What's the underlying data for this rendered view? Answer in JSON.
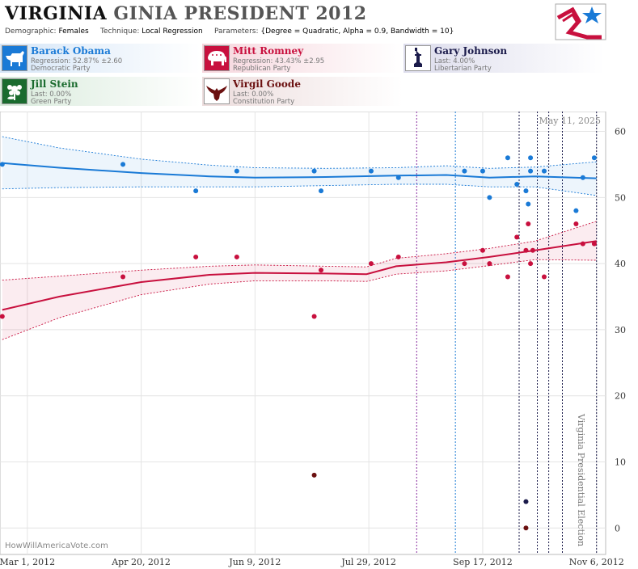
{
  "header": {
    "title_bold": "VIRGINIA",
    "title_rest": "GINIA PRESIDENT 2012",
    "demographic_label": "Demographic:",
    "demographic_value": "Females",
    "technique_label": "Technique:",
    "technique_value": "Local Regression",
    "parameters_label": "Parameters:",
    "parameters_value": "{Degree = Quadratic, Alpha = 0.9, Bandwidth = 10}",
    "logo_icon": "star-flag-logo-icon"
  },
  "candidates": [
    {
      "name": "Barack Obama",
      "line1": "Regression: 52.87% ±2.60",
      "line2": "Democratic Party",
      "color": "#1a7ad6",
      "icon": "donkey-icon"
    },
    {
      "name": "Mitt Romney",
      "line1": "Regression: 43.43% ±2.95",
      "line2": "Republican Party",
      "color": "#c8103e",
      "icon": "elephant-icon"
    },
    {
      "name": "Gary Johnson",
      "line1": "Last: 4.00%",
      "line2": "Libertarian Party",
      "color": "#1a1a4a",
      "icon": "statue-of-liberty-icon"
    },
    {
      "name": "Jill Stein",
      "line1": "Last: 0.00%",
      "line2": "Green Party",
      "color": "#1a6b2e",
      "icon": "flower-icon"
    },
    {
      "name": "Virgil Goode",
      "line1": "Last: 0.00%",
      "line2": "Constitution Party",
      "color": "#6b1010",
      "icon": "eagle-icon"
    }
  ],
  "chart_data": {
    "type": "scatter",
    "date_stamp": "May 11, 2025",
    "watermark": "HowWillAmericaVote.com",
    "event_label": "Virginia Presidential Election",
    "x_range": [
      "2012-02-18",
      "2012-11-10"
    ],
    "ylim": [
      -4,
      63
    ],
    "y_ticks": [
      0,
      10,
      20,
      30,
      40,
      50,
      60
    ],
    "x_ticks": [
      {
        "date": "2012-03-01",
        "label": "Mar 1, 2012"
      },
      {
        "date": "2012-04-20",
        "label": "Apr 20, 2012"
      },
      {
        "date": "2012-06-09",
        "label": "Jun 9, 2012"
      },
      {
        "date": "2012-07-29",
        "label": "Jul 29, 2012"
      },
      {
        "date": "2012-09-17",
        "label": "Sep 17, 2012"
      },
      {
        "date": "2012-11-06",
        "label": "Nov 6, 2012"
      }
    ],
    "vlines": [
      {
        "date": "2012-08-19",
        "color": "#8a2fa0"
      },
      {
        "date": "2012-09-05",
        "color": "#1a7ad6"
      },
      {
        "date": "2012-10-03",
        "color": "#1a1a4a"
      },
      {
        "date": "2012-10-11",
        "color": "#1a1a4a"
      },
      {
        "date": "2012-10-16",
        "color": "#1a1a4a"
      },
      {
        "date": "2012-10-22",
        "color": "#1a1a4a"
      },
      {
        "date": "2012-11-06",
        "color": "#1a1a4a"
      }
    ],
    "series": [
      {
        "name": "Barack Obama",
        "color": "#1a7ad6",
        "points": [
          [
            "2012-02-19",
            55
          ],
          [
            "2012-04-12",
            55
          ],
          [
            "2012-05-14",
            51
          ],
          [
            "2012-06-01",
            54
          ],
          [
            "2012-07-05",
            54
          ],
          [
            "2012-07-08",
            51
          ],
          [
            "2012-07-30",
            54
          ],
          [
            "2012-08-11",
            53
          ],
          [
            "2012-09-09",
            54
          ],
          [
            "2012-09-17",
            54
          ],
          [
            "2012-09-20",
            50
          ],
          [
            "2012-09-28",
            56
          ],
          [
            "2012-10-02",
            52
          ],
          [
            "2012-10-06",
            51
          ],
          [
            "2012-10-07",
            49
          ],
          [
            "2012-10-08",
            54
          ],
          [
            "2012-10-08",
            56
          ],
          [
            "2012-10-14",
            54
          ],
          [
            "2012-10-28",
            48
          ],
          [
            "2012-10-31",
            53
          ],
          [
            "2012-11-05",
            56
          ]
        ],
        "trend": [
          [
            "2012-02-19",
            55.2
          ],
          [
            "2012-03-15",
            54.5
          ],
          [
            "2012-04-20",
            53.7
          ],
          [
            "2012-05-20",
            53.2
          ],
          [
            "2012-06-09",
            53.0
          ],
          [
            "2012-07-10",
            53.1
          ],
          [
            "2012-08-10",
            53.3
          ],
          [
            "2012-09-01",
            53.4
          ],
          [
            "2012-09-20",
            53.0
          ],
          [
            "2012-10-10",
            53.2
          ],
          [
            "2012-11-06",
            52.9
          ]
        ],
        "upper": [
          [
            "2012-02-19",
            59.2
          ],
          [
            "2012-03-15",
            57.5
          ],
          [
            "2012-04-20",
            55.8
          ],
          [
            "2012-05-20",
            54.9
          ],
          [
            "2012-06-09",
            54.5
          ],
          [
            "2012-07-10",
            54.4
          ],
          [
            "2012-08-10",
            54.5
          ],
          [
            "2012-09-01",
            54.8
          ],
          [
            "2012-09-20",
            54.4
          ],
          [
            "2012-10-10",
            54.6
          ],
          [
            "2012-11-06",
            55.4
          ]
        ],
        "lower": [
          [
            "2012-02-19",
            51.3
          ],
          [
            "2012-03-15",
            51.5
          ],
          [
            "2012-04-20",
            51.6
          ],
          [
            "2012-05-20",
            51.6
          ],
          [
            "2012-06-09",
            51.6
          ],
          [
            "2012-07-10",
            51.8
          ],
          [
            "2012-08-10",
            52.0
          ],
          [
            "2012-09-01",
            52.0
          ],
          [
            "2012-09-20",
            51.6
          ],
          [
            "2012-10-10",
            51.6
          ],
          [
            "2012-11-06",
            50.3
          ]
        ]
      },
      {
        "name": "Mitt Romney",
        "color": "#c8103e",
        "points": [
          [
            "2012-02-19",
            32
          ],
          [
            "2012-04-12",
            38
          ],
          [
            "2012-05-14",
            41
          ],
          [
            "2012-06-01",
            41
          ],
          [
            "2012-07-05",
            32
          ],
          [
            "2012-07-08",
            39
          ],
          [
            "2012-07-30",
            40
          ],
          [
            "2012-08-11",
            41
          ],
          [
            "2012-09-09",
            40
          ],
          [
            "2012-09-17",
            42
          ],
          [
            "2012-09-20",
            40
          ],
          [
            "2012-09-28",
            38
          ],
          [
            "2012-10-02",
            44
          ],
          [
            "2012-10-06",
            42
          ],
          [
            "2012-10-07",
            46
          ],
          [
            "2012-10-08",
            40
          ],
          [
            "2012-10-09",
            42
          ],
          [
            "2012-10-14",
            38
          ],
          [
            "2012-10-28",
            46
          ],
          [
            "2012-10-31",
            43
          ],
          [
            "2012-11-05",
            43
          ]
        ],
        "trend": [
          [
            "2012-02-19",
            33.0
          ],
          [
            "2012-03-15",
            35.0
          ],
          [
            "2012-04-20",
            37.2
          ],
          [
            "2012-05-20",
            38.3
          ],
          [
            "2012-06-09",
            38.6
          ],
          [
            "2012-07-10",
            38.5
          ],
          [
            "2012-07-28",
            38.4
          ],
          [
            "2012-08-10",
            39.6
          ],
          [
            "2012-09-01",
            40.2
          ],
          [
            "2012-09-20",
            41.0
          ],
          [
            "2012-10-10",
            42.0
          ],
          [
            "2012-11-06",
            43.4
          ]
        ],
        "upper": [
          [
            "2012-02-19",
            37.5
          ],
          [
            "2012-03-15",
            38.1
          ],
          [
            "2012-04-20",
            39.0
          ],
          [
            "2012-05-20",
            39.6
          ],
          [
            "2012-06-09",
            39.8
          ],
          [
            "2012-07-10",
            39.6
          ],
          [
            "2012-07-28",
            39.5
          ],
          [
            "2012-08-10",
            40.8
          ],
          [
            "2012-09-01",
            41.5
          ],
          [
            "2012-09-20",
            42.3
          ],
          [
            "2012-10-10",
            43.4
          ],
          [
            "2012-11-06",
            46.4
          ]
        ],
        "lower": [
          [
            "2012-02-19",
            28.5
          ],
          [
            "2012-03-15",
            31.8
          ],
          [
            "2012-04-20",
            35.3
          ],
          [
            "2012-05-20",
            36.9
          ],
          [
            "2012-06-09",
            37.4
          ],
          [
            "2012-07-10",
            37.4
          ],
          [
            "2012-07-28",
            37.3
          ],
          [
            "2012-08-10",
            38.4
          ],
          [
            "2012-09-01",
            38.9
          ],
          [
            "2012-09-20",
            39.7
          ],
          [
            "2012-10-10",
            40.6
          ],
          [
            "2012-11-06",
            40.5
          ]
        ]
      },
      {
        "name": "Gary Johnson",
        "color": "#1a1a4a",
        "points": [
          [
            "2012-10-06",
            4
          ]
        ]
      },
      {
        "name": "Virgil Goode",
        "color": "#6b1010",
        "points": [
          [
            "2012-07-05",
            8
          ],
          [
            "2012-10-06",
            0
          ]
        ]
      }
    ]
  }
}
